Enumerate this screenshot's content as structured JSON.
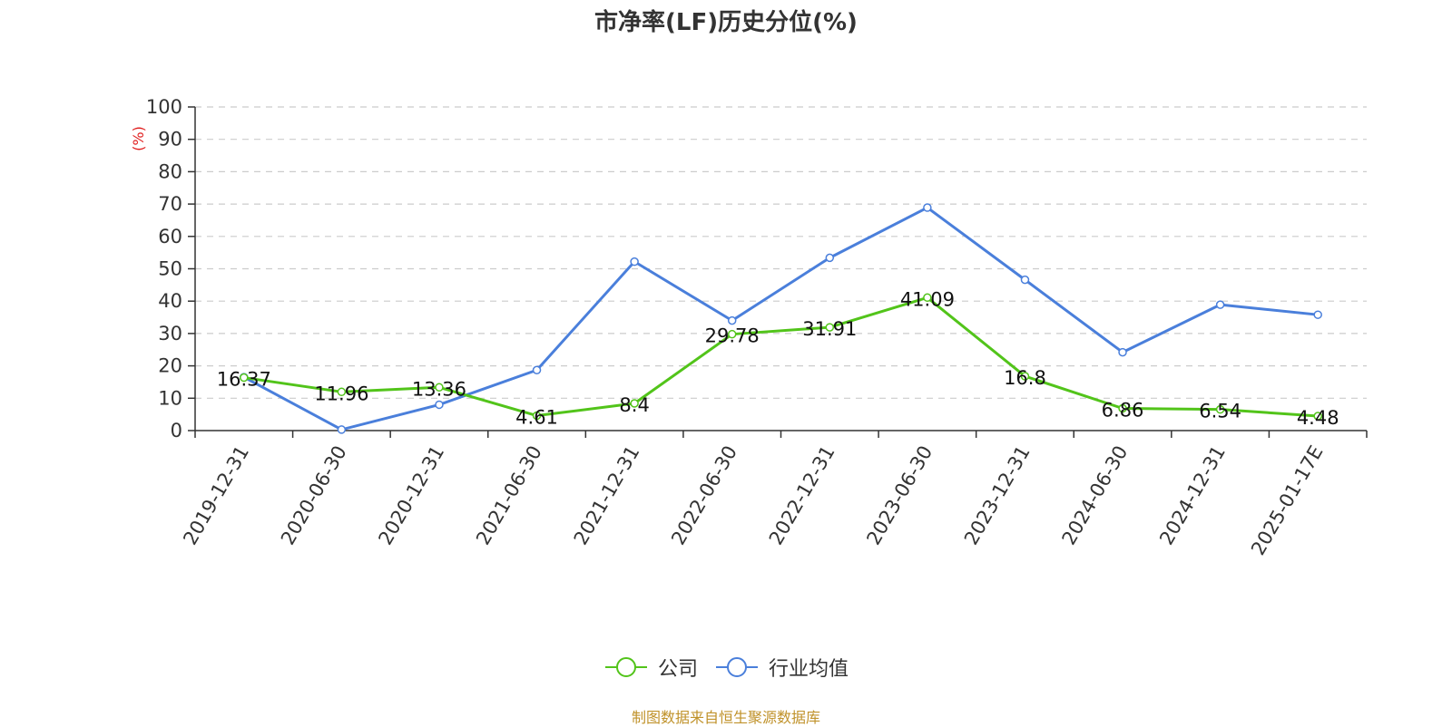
{
  "chart_data": {
    "type": "line",
    "title": "市净率(LF)历史分位(%)",
    "ylabel": "(%)",
    "ylim": [
      0,
      100
    ],
    "yticks": [
      0,
      10,
      20,
      30,
      40,
      50,
      60,
      70,
      80,
      90,
      100
    ],
    "categories": [
      "2019-12-31",
      "2020-06-30",
      "2020-12-31",
      "2021-06-30",
      "2021-12-31",
      "2022-06-30",
      "2022-12-31",
      "2023-06-30",
      "2023-12-31",
      "2024-06-30",
      "2024-12-31",
      "2025-01-17E"
    ],
    "grid": true,
    "legend_position": "bottom",
    "series": [
      {
        "name": "公司",
        "color": "#52c41a",
        "values": [
          16.37,
          11.96,
          13.36,
          4.61,
          8.4,
          29.78,
          31.91,
          41.09,
          16.8,
          6.86,
          6.54,
          4.48
        ],
        "labels": [
          "16.37",
          "11.96",
          "13.36",
          "4.61",
          "8.4",
          "29.78",
          "31.91",
          "41.09",
          "16.8",
          "6.86",
          "6.54",
          "4.48"
        ]
      },
      {
        "name": "行业均值",
        "color": "#4a7fdb",
        "values": [
          16.5,
          0.3,
          8.0,
          18.7,
          52.2,
          34.0,
          53.4,
          68.9,
          46.6,
          24.2,
          38.9,
          35.8
        ]
      }
    ]
  },
  "source": "制图数据来自恒生聚源数据库"
}
